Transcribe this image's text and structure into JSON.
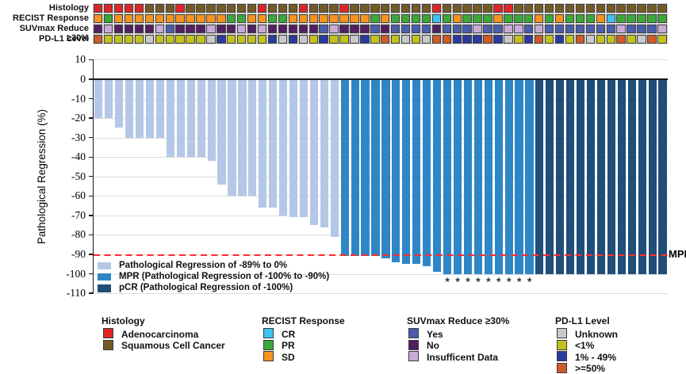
{
  "figure": {
    "ylabel": "Pathological Regression (%)"
  },
  "tracks": {
    "rows": [
      {
        "label": "Histology",
        "key": "h",
        "palette": "histology"
      },
      {
        "label": "RECIST Response",
        "key": "r",
        "palette": "recist"
      },
      {
        "label": "SUVmax Reduce ≥30%",
        "key": "s",
        "palette": "suvmax"
      },
      {
        "label": "PD-L1 Level",
        "key": "p",
        "palette": "pdl1"
      }
    ],
    "palettes": {
      "histology": {
        "A": "#E02528",
        "S": "#755A25"
      },
      "recist": {
        "CR": "#3EC4F0",
        "PR": "#3CA839",
        "SD": "#F7941D"
      },
      "suvmax": {
        "Y": "#4A5EAD",
        "N": "#531F63",
        "I": "#C7ACDA"
      },
      "pdl1": {
        "U": "#C9C9C9",
        "L": "#C3C21D",
        "M": "#2A3A9E",
        "H": "#CE5B27"
      }
    }
  },
  "chart_data": {
    "type": "bar",
    "title": "",
    "xlabel": "",
    "ylabel": "Pathological Regression (%)",
    "ylim": [
      -110,
      10
    ],
    "yticks": [
      10,
      0,
      -10,
      -20,
      -30,
      -40,
      -50,
      -60,
      -70,
      -80,
      -90,
      -100,
      -110
    ],
    "grid": true,
    "mpr_line": {
      "y": -90,
      "label": "MPR",
      "color": "#FF2B2B"
    },
    "bar_colors": {
      "reg": "#B4C7E7",
      "mpr": "#2E86C6",
      "pcr": "#1F4E79"
    },
    "columns": [
      {
        "v": -20,
        "g": "reg",
        "a": 0,
        "h": "A",
        "r": "SD",
        "s": "N",
        "p": "H"
      },
      {
        "v": -20,
        "g": "reg",
        "a": 0,
        "h": "A",
        "r": "PR",
        "s": "I",
        "p": "L"
      },
      {
        "v": -25,
        "g": "reg",
        "a": 0,
        "h": "A",
        "r": "SD",
        "s": "N",
        "p": "L"
      },
      {
        "v": -30,
        "g": "reg",
        "a": 0,
        "h": "A",
        "r": "SD",
        "s": "N",
        "p": "L"
      },
      {
        "v": -30,
        "g": "reg",
        "a": 0,
        "h": "A",
        "r": "SD",
        "s": "N",
        "p": "L"
      },
      {
        "v": -30,
        "g": "reg",
        "a": 0,
        "h": "S",
        "r": "SD",
        "s": "N",
        "p": "U"
      },
      {
        "v": -30,
        "g": "reg",
        "a": 0,
        "h": "S",
        "r": "SD",
        "s": "I",
        "p": "L"
      },
      {
        "v": -40,
        "g": "reg",
        "a": 0,
        "h": "S",
        "r": "SD",
        "s": "Y",
        "p": "L"
      },
      {
        "v": -40,
        "g": "reg",
        "a": 0,
        "h": "A",
        "r": "SD",
        "s": "N",
        "p": "L"
      },
      {
        "v": -40,
        "g": "reg",
        "a": 0,
        "h": "S",
        "r": "SD",
        "s": "N",
        "p": "L"
      },
      {
        "v": -40,
        "g": "reg",
        "a": 0,
        "h": "S",
        "r": "SD",
        "s": "N",
        "p": "L"
      },
      {
        "v": -42,
        "g": "reg",
        "a": 0,
        "h": "S",
        "r": "SD",
        "s": "I",
        "p": "U"
      },
      {
        "v": -54,
        "g": "reg",
        "a": 0,
        "h": "S",
        "r": "SD",
        "s": "N",
        "p": "M"
      },
      {
        "v": -60,
        "g": "reg",
        "a": 0,
        "h": "S",
        "r": "PR",
        "s": "N",
        "p": "L"
      },
      {
        "v": -60,
        "g": "reg",
        "a": 0,
        "h": "S",
        "r": "PR",
        "s": "I",
        "p": "L"
      },
      {
        "v": -60,
        "g": "reg",
        "a": 0,
        "h": "S",
        "r": "SD",
        "s": "N",
        "p": "L"
      },
      {
        "v": -66,
        "g": "reg",
        "a": 0,
        "h": "A",
        "r": "SD",
        "s": "I",
        "p": "L"
      },
      {
        "v": -66,
        "g": "reg",
        "a": 0,
        "h": "S",
        "r": "PR",
        "s": "N",
        "p": "M"
      },
      {
        "v": -70,
        "g": "reg",
        "a": 0,
        "h": "S",
        "r": "PR",
        "s": "N",
        "p": "U"
      },
      {
        "v": -71,
        "g": "reg",
        "a": 0,
        "h": "S",
        "r": "SD",
        "s": "N",
        "p": "M"
      },
      {
        "v": -71,
        "g": "reg",
        "a": 0,
        "h": "A",
        "r": "SD",
        "s": "N",
        "p": "U"
      },
      {
        "v": -75,
        "g": "reg",
        "a": 0,
        "h": "S",
        "r": "SD",
        "s": "N",
        "p": "L"
      },
      {
        "v": -76,
        "g": "reg",
        "a": 0,
        "h": "S",
        "r": "SD",
        "s": "Y",
        "p": "M"
      },
      {
        "v": -81,
        "g": "reg",
        "a": 0,
        "h": "S",
        "r": "SD",
        "s": "I",
        "p": "L"
      },
      {
        "v": -91,
        "g": "mpr",
        "a": 0,
        "h": "A",
        "r": "SD",
        "s": "N",
        "p": "L"
      },
      {
        "v": -91,
        "g": "mpr",
        "a": 0,
        "h": "S",
        "r": "SD",
        "s": "N",
        "p": "U"
      },
      {
        "v": -91,
        "g": "mpr",
        "a": 0,
        "h": "S",
        "r": "SD",
        "s": "N",
        "p": "M"
      },
      {
        "v": -91,
        "g": "mpr",
        "a": 0,
        "h": "S",
        "r": "PR",
        "s": "Y",
        "p": "L"
      },
      {
        "v": -92,
        "g": "mpr",
        "a": 0,
        "h": "S",
        "r": "SD",
        "s": "N",
        "p": "H"
      },
      {
        "v": -94,
        "g": "mpr",
        "a": 0,
        "h": "S",
        "r": "PR",
        "s": "Y",
        "p": "L"
      },
      {
        "v": -95,
        "g": "mpr",
        "a": 0,
        "h": "S",
        "r": "PR",
        "s": "Y",
        "p": "U"
      },
      {
        "v": -95,
        "g": "mpr",
        "a": 0,
        "h": "S",
        "r": "PR",
        "s": "Y",
        "p": "L"
      },
      {
        "v": -96,
        "g": "mpr",
        "a": 0,
        "h": "S",
        "r": "PR",
        "s": "Y",
        "p": "U"
      },
      {
        "v": -99,
        "g": "mpr",
        "a": 0,
        "h": "A",
        "r": "CR",
        "s": "N",
        "p": "H"
      },
      {
        "v": -100,
        "g": "mpr",
        "a": 1,
        "h": "S",
        "r": "PR",
        "s": "Y",
        "p": "H"
      },
      {
        "v": -100,
        "g": "mpr",
        "a": 1,
        "h": "S",
        "r": "SD",
        "s": "Y",
        "p": "M"
      },
      {
        "v": -100,
        "g": "mpr",
        "a": 1,
        "h": "S",
        "r": "PR",
        "s": "Y",
        "p": "M"
      },
      {
        "v": -100,
        "g": "mpr",
        "a": 1,
        "h": "S",
        "r": "PR",
        "s": "I",
        "p": "M"
      },
      {
        "v": -100,
        "g": "mpr",
        "a": 1,
        "h": "S",
        "r": "PR",
        "s": "Y",
        "p": "H"
      },
      {
        "v": -100,
        "g": "mpr",
        "a": 1,
        "h": "A",
        "r": "SD",
        "s": "Y",
        "p": "M"
      },
      {
        "v": -100,
        "g": "mpr",
        "a": 1,
        "h": "A",
        "r": "PR",
        "s": "I",
        "p": "U"
      },
      {
        "v": -100,
        "g": "mpr",
        "a": 1,
        "h": "S",
        "r": "PR",
        "s": "I",
        "p": "L"
      },
      {
        "v": -100,
        "g": "mpr",
        "a": 1,
        "h": "S",
        "r": "PR",
        "s": "Y",
        "p": "M"
      },
      {
        "v": -100,
        "g": "pcr",
        "a": 0,
        "h": "S",
        "r": "SD",
        "s": "I",
        "p": "H"
      },
      {
        "v": -100,
        "g": "pcr",
        "a": 0,
        "h": "S",
        "r": "PR",
        "s": "Y",
        "p": "L"
      },
      {
        "v": -100,
        "g": "pcr",
        "a": 0,
        "h": "S",
        "r": "SD",
        "s": "Y",
        "p": "M"
      },
      {
        "v": -100,
        "g": "pcr",
        "a": 0,
        "h": "S",
        "r": "PR",
        "s": "Y",
        "p": "L"
      },
      {
        "v": -100,
        "g": "pcr",
        "a": 0,
        "h": "S",
        "r": "PR",
        "s": "Y",
        "p": "H"
      },
      {
        "v": -100,
        "g": "pcr",
        "a": 0,
        "h": "S",
        "r": "PR",
        "s": "Y",
        "p": "U"
      },
      {
        "v": -100,
        "g": "pcr",
        "a": 0,
        "h": "S",
        "r": "SD",
        "s": "Y",
        "p": "L"
      },
      {
        "v": -100,
        "g": "pcr",
        "a": 0,
        "h": "S",
        "r": "CR",
        "s": "Y",
        "p": "L"
      },
      {
        "v": -100,
        "g": "pcr",
        "a": 0,
        "h": "S",
        "r": "PR",
        "s": "I",
        "p": "H"
      },
      {
        "v": -100,
        "g": "pcr",
        "a": 0,
        "h": "S",
        "r": "PR",
        "s": "Y",
        "p": "L"
      },
      {
        "v": -100,
        "g": "pcr",
        "a": 0,
        "h": "S",
        "r": "PR",
        "s": "Y",
        "p": "U"
      },
      {
        "v": -100,
        "g": "pcr",
        "a": 0,
        "h": "S",
        "r": "PR",
        "s": "Y",
        "p": "H"
      },
      {
        "v": -100,
        "g": "pcr",
        "a": 0,
        "h": "S",
        "r": "PR",
        "s": "I",
        "p": "L"
      }
    ]
  },
  "plot_legend": {
    "items": [
      {
        "group": "reg",
        "label": "Pathological Regression of -89% to 0%"
      },
      {
        "group": "mpr",
        "label": "MPR (Pathological Regression of -100% to -90%)"
      },
      {
        "group": "pcr",
        "label": "pCR (Pathological Regression of -100%)"
      }
    ]
  },
  "bottom_legend": [
    {
      "title": "Histology",
      "items": [
        {
          "color": "#E02528",
          "label": "Adenocarcinoma"
        },
        {
          "color": "#755A25",
          "label": "Squamous Cell Cancer"
        }
      ]
    },
    {
      "title": "RECIST Response",
      "items": [
        {
          "color": "#3EC4F0",
          "label": "CR"
        },
        {
          "color": "#3CA839",
          "label": "PR"
        },
        {
          "color": "#F7941D",
          "label": "SD"
        }
      ]
    },
    {
      "title": "SUVmax Reduce ≥30%",
      "items": [
        {
          "color": "#4A5EAD",
          "label": "Yes"
        },
        {
          "color": "#531F63",
          "label": "No"
        },
        {
          "color": "#C7ACDA",
          "label": "Insufficent Data"
        }
      ]
    },
    {
      "title": "PD-L1 Level",
      "items": [
        {
          "color": "#C9C9C9",
          "label": "Unknown"
        },
        {
          "color": "#C3C21D",
          "label": "<1%"
        },
        {
          "color": "#2A3A9E",
          "label": "1% - 49%"
        },
        {
          "color": "#CE5B27",
          "label": ">=50%"
        }
      ]
    }
  ]
}
